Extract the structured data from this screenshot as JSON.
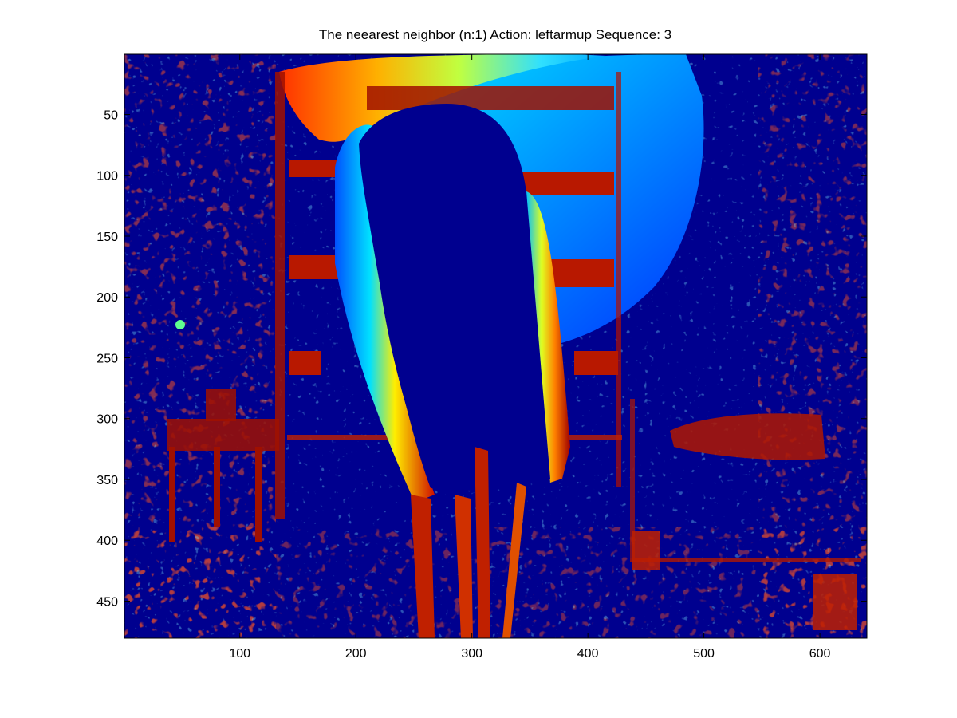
{
  "chart_data": {
    "type": "heatmap",
    "title": "The neearest neighbor (n:1) Action: leftarmup Sequence: 3",
    "xlabel": "",
    "ylabel": "",
    "colormap": "jet",
    "xlim": [
      0.5,
      640.5
    ],
    "ylim": [
      0.5,
      480.5
    ],
    "y_reversed": true,
    "grid": false,
    "x_ticks": [
      100,
      200,
      300,
      400,
      500,
      600
    ],
    "x_tick_labels": [
      "100",
      "200",
      "300",
      "400",
      "500",
      "600"
    ],
    "y_ticks": [
      50,
      100,
      150,
      200,
      250,
      300,
      350,
      400,
      450
    ],
    "y_tick_labels": [
      "50",
      "100",
      "150",
      "200",
      "250",
      "300",
      "350",
      "400",
      "450"
    ],
    "colors": {
      "background": "#00008f",
      "frame": "#000000"
    }
  }
}
